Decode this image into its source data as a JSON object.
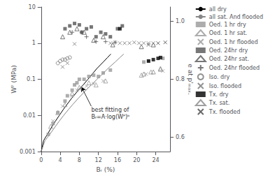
{
  "chart_data": {
    "type": "scatter",
    "xlabel": "Bᵣ (%)",
    "ylabel": "Wᴾ (MPa)",
    "y2label": "e at p'ₘₐₓ.",
    "log": "y",
    "grid": false,
    "legend": "right",
    "xlim": [
      0,
      27
    ],
    "xticks": [
      0,
      4,
      8,
      12,
      16,
      20,
      24
    ],
    "ylim": [
      0.001,
      10
    ],
    "yticks": [
      0.001,
      0.01,
      0.1,
      1,
      10
    ],
    "y2lim": [
      0.55,
      1.05
    ],
    "y2ticks": [
      0.6,
      0.8,
      {
        "value": 1.0,
        "label": "1.0"
      }
    ],
    "series": [
      {
        "name": "all dry",
        "type": "line",
        "color": "#000000",
        "line_style": "solid",
        "x": [
          0.0,
          0.5,
          1.3,
          2.3,
          3.0,
          3.8,
          4.7,
          5.4,
          6.4,
          7.8,
          8.8,
          9.8,
          10.9,
          11.7,
          13.0,
          13.9,
          14.6
        ],
        "values": [
          0.001,
          0.002,
          0.003,
          0.005,
          0.007,
          0.01,
          0.015,
          0.02,
          0.03,
          0.05,
          0.07,
          0.1,
          0.15,
          0.2,
          0.3,
          0.4,
          0.5
        ]
      },
      {
        "name": "all sat. And flooded",
        "type": "line",
        "color": "#888888",
        "line_style": "solid",
        "x": [
          0.0,
          0.8,
          1.8,
          3.0,
          3.8,
          4.7,
          5.8,
          6.6,
          7.8,
          9.4,
          10.5,
          11.7,
          13.1,
          14.0,
          15.5,
          16.5,
          17.3
        ],
        "values": [
          0.001,
          0.002,
          0.003,
          0.005,
          0.007,
          0.01,
          0.015,
          0.02,
          0.03,
          0.05,
          0.07,
          0.1,
          0.15,
          0.2,
          0.3,
          0.4,
          0.5
        ]
      },
      {
        "name": "Oed. 1 hr dry",
        "type": "scatter",
        "color": "#999999",
        "marker": "square",
        "x": [
          1.5,
          2.5,
          3.5,
          5.0,
          5.5,
          6.5,
          7.0,
          7.5,
          8.0,
          9.0,
          10.0,
          11.0,
          12.0,
          13.0,
          14.5,
          21.5,
          22.5,
          25.5
        ],
        "values": [
          0.003,
          0.006,
          0.012,
          0.025,
          0.035,
          0.05,
          0.07,
          0.08,
          0.1,
          0.1,
          0.12,
          0.13,
          0.12,
          0.15,
          0.18,
          0.3,
          0.32,
          0.38
        ]
      },
      {
        "name": "Oed. 1 hr sat.",
        "type": "scatter",
        "color": "#999999",
        "marker": "open_triangle",
        "x": [
          2.0,
          3.5,
          5.0,
          6.5,
          8.0,
          10.0,
          11.5,
          13.5,
          21.0,
          23.0,
          25.0
        ],
        "values": [
          0.005,
          0.012,
          0.02,
          0.04,
          0.06,
          0.08,
          0.07,
          0.09,
          0.13,
          0.16,
          0.2
        ]
      },
      {
        "name": "Oed. 1 hr flooded",
        "type": "scatter",
        "color": "#999999",
        "marker": "x",
        "x": [
          2.5,
          4.5,
          6.5,
          7.5,
          8.5,
          9.5,
          11.0,
          13.0,
          22.0,
          25.5
        ],
        "values": [
          0.007,
          0.018,
          0.035,
          0.05,
          0.055,
          0.065,
          0.075,
          0.09,
          0.14,
          0.17
        ]
      },
      {
        "name": "Oed. 24hr dry",
        "type": "scatter",
        "color": "#555555",
        "marker": "square",
        "x": [
          5.0,
          6.0,
          7.0,
          8.0,
          8.5,
          9.5,
          10.5,
          11.5,
          12.5,
          13.5,
          14.5,
          16.0,
          17.0
        ],
        "values": [
          2.5,
          3.0,
          3.5,
          3.2,
          2.0,
          2.5,
          2.8,
          1.5,
          2.0,
          1.8,
          1.5,
          2.5,
          3.0
        ]
      },
      {
        "name": "Oed. 24hr sat.",
        "type": "scatter",
        "color": "#555555",
        "marker": "open_triangle",
        "x": [
          4.5,
          6.0,
          7.5,
          9.0,
          11.0,
          13.0,
          15.0,
          21.0,
          23.5
        ],
        "values": [
          1.5,
          2.0,
          2.5,
          2.0,
          1.2,
          1.5,
          0.9,
          0.8,
          0.9
        ]
      },
      {
        "name": "Oed. 24hr flooded",
        "type": "scatter",
        "color": "#555555",
        "marker": "plus",
        "x": [
          6.5,
          8.5,
          9.5,
          11.5,
          13.5,
          15.5
        ],
        "values": [
          2.0,
          2.0,
          1.5,
          1.1,
          1.1,
          1.05
        ]
      },
      {
        "name": "Iso. dry",
        "type": "scatter",
        "color": "#777777",
        "marker": "open_circle",
        "x": [
          3.5,
          4.0,
          4.5,
          5.0,
          5.5,
          6.0
        ],
        "values": [
          0.28,
          0.32,
          0.35,
          0.35,
          0.38,
          0.4
        ]
      },
      {
        "name": "Iso. flooded",
        "type": "scatter",
        "color": "#777777",
        "marker": "x",
        "x": [
          4.5,
          5.5,
          7.0,
          14.5,
          15.5,
          16.5,
          17.5,
          18.5,
          19.5,
          20.5,
          21.5,
          22.5,
          23.5
        ],
        "values": [
          0.22,
          0.28,
          0.95,
          1.0,
          1.05,
          1.0,
          1.0,
          1.0,
          1.05,
          1.0,
          1.0,
          1.0,
          1.0
        ]
      },
      {
        "name": "Tx. dry",
        "type": "scatter",
        "color": "#000000",
        "marker": "square",
        "x": [
          16.5,
          22.5,
          23.5,
          24.5,
          25.0
        ],
        "values": [
          2.5,
          0.32,
          0.35,
          0.38,
          0.4
        ]
      },
      {
        "name": "Tx. sat.",
        "type": "scatter",
        "color": "#888888",
        "marker": "open_triangle",
        "x": [
          21.5,
          23.5,
          25.0
        ],
        "values": [
          0.14,
          0.16,
          0.19
        ]
      },
      {
        "name": "Tx. flooded",
        "type": "scatter",
        "color": "#444444",
        "marker": "x",
        "x": [
          22.5,
          24.5,
          26.0
        ],
        "values": [
          0.9,
          1.0,
          1.05
        ]
      }
    ],
    "annotations": [
      {
        "text": "best fitting of\nBᵣ=A·log(Wᴾ)ᵇ",
        "xy": [
          8.5,
          0.06
        ],
        "xytext": [
          10.5,
          0.018
        ]
      }
    ]
  }
}
